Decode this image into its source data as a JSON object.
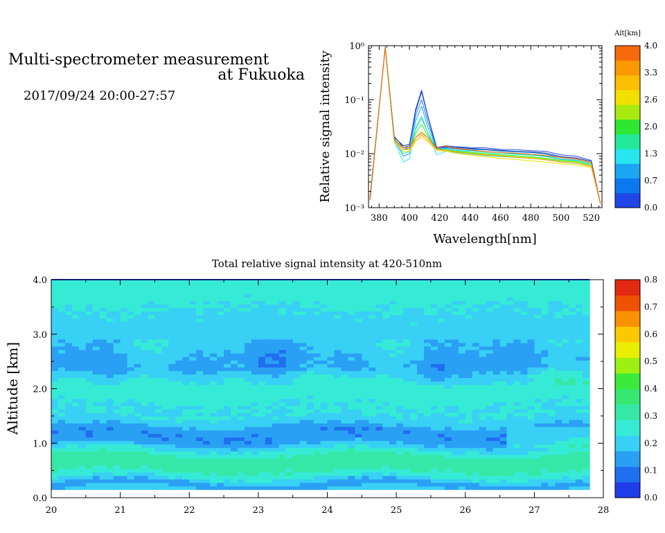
{
  "header": {
    "title_line1": "Multi-spectrometer measurement",
    "title_line2": "at Fukuoka",
    "date_range": "2017/09/24 20:00-27:57"
  },
  "colors": {
    "spectrum_scale": [
      "#1f46e6",
      "#0a78ee",
      "#1aa6f2",
      "#27e6f0",
      "#22e89a",
      "#2ee830",
      "#a8ea10",
      "#f2e000",
      "#fabf00",
      "#fb9a00",
      "#f56a0a"
    ],
    "heatmap_scale": [
      "#1f3de8",
      "#1f6fee",
      "#2aa0f4",
      "#38d0f4",
      "#36ebd6",
      "#36e8a8",
      "#36e872",
      "#3cea3c",
      "#9ef012",
      "#eaee00",
      "#fcc800",
      "#f89200",
      "#ee5200",
      "#e22a10"
    ]
  },
  "chart_data": [
    {
      "type": "line",
      "title": "",
      "xlabel": "Wavelength[nm]",
      "ylabel": "Relative signal intensity",
      "xlim": [
        373,
        527
      ],
      "ylim": [
        0.001,
        1
      ],
      "y_scale": "log",
      "x_ticks": [
        380,
        400,
        420,
        440,
        460,
        480,
        500,
        520
      ],
      "y_ticks": [
        {
          "value": 0.001,
          "label": "10⁻³"
        },
        {
          "value": 0.01,
          "label": "10⁻²"
        },
        {
          "value": 0.1,
          "label": "10⁻¹"
        },
        {
          "value": 1,
          "label": "10⁰"
        }
      ],
      "colorbar": {
        "title": "Alt[km]",
        "labels": [
          "4.0",
          "3.3",
          "2.6",
          "2.0",
          "1.3",
          "0.7",
          "0.0"
        ],
        "range": [
          0.0,
          4.0
        ]
      },
      "x": [
        374,
        384,
        390,
        396,
        400,
        404,
        408,
        412,
        418,
        424,
        430,
        440,
        450,
        460,
        470,
        480,
        490,
        500,
        510,
        520,
        526
      ],
      "series": [
        {
          "color": "#0a2a80",
          "values": [
            0.0016,
            0.95,
            0.02,
            0.014,
            0.015,
            0.06,
            0.14,
            0.05,
            0.0125,
            0.0135,
            0.013,
            0.0125,
            0.012,
            0.0115,
            0.011,
            0.0108,
            0.0102,
            0.0088,
            0.0083,
            0.0072,
            0.0012
          ]
        },
        {
          "color": "#1f46e6",
          "values": [
            0.0015,
            0.95,
            0.021,
            0.013,
            0.014,
            0.065,
            0.15,
            0.052,
            0.013,
            0.014,
            0.0135,
            0.013,
            0.0128,
            0.012,
            0.0118,
            0.0114,
            0.011,
            0.0095,
            0.009,
            0.0075,
            0.0012
          ]
        },
        {
          "color": "#0a78ee",
          "values": [
            0.0015,
            0.94,
            0.019,
            0.012,
            0.013,
            0.05,
            0.1,
            0.04,
            0.0125,
            0.013,
            0.0125,
            0.012,
            0.0118,
            0.0112,
            0.0108,
            0.0105,
            0.0098,
            0.0085,
            0.008,
            0.0068,
            0.0012
          ]
        },
        {
          "color": "#1aa6f2",
          "values": [
            0.0014,
            0.93,
            0.018,
            0.009,
            0.01,
            0.04,
            0.075,
            0.032,
            0.012,
            0.0125,
            0.012,
            0.0115,
            0.011,
            0.0105,
            0.01,
            0.0097,
            0.009,
            0.008,
            0.0076,
            0.0065,
            0.0012
          ]
        },
        {
          "color": "#27e6f0",
          "values": [
            0.0014,
            0.92,
            0.017,
            0.007,
            0.008,
            0.03,
            0.05,
            0.025,
            0.0095,
            0.011,
            0.0105,
            0.0098,
            0.0092,
            0.0088,
            0.0085,
            0.0082,
            0.0078,
            0.007,
            0.0066,
            0.006,
            0.0012
          ]
        },
        {
          "color": "#22e89a",
          "values": [
            0.0014,
            0.92,
            0.019,
            0.01,
            0.011,
            0.028,
            0.045,
            0.025,
            0.012,
            0.012,
            0.0115,
            0.011,
            0.0105,
            0.01,
            0.0098,
            0.0094,
            0.0088,
            0.0078,
            0.0075,
            0.0065,
            0.0012
          ]
        },
        {
          "color": "#2ee830",
          "values": [
            0.0014,
            0.92,
            0.019,
            0.012,
            0.012,
            0.024,
            0.035,
            0.022,
            0.012,
            0.012,
            0.0112,
            0.0105,
            0.01,
            0.0095,
            0.0092,
            0.0088,
            0.0082,
            0.0075,
            0.0072,
            0.0062,
            0.0012
          ]
        },
        {
          "color": "#a8ea10",
          "values": [
            0.0014,
            0.91,
            0.018,
            0.012,
            0.012,
            0.02,
            0.026,
            0.02,
            0.012,
            0.0115,
            0.011,
            0.0102,
            0.0097,
            0.0092,
            0.0088,
            0.0085,
            0.008,
            0.0073,
            0.007,
            0.006,
            0.0012
          ]
        },
        {
          "color": "#f2e000",
          "values": [
            0.0014,
            0.91,
            0.017,
            0.011,
            0.011,
            0.017,
            0.02,
            0.017,
            0.0115,
            0.011,
            0.0102,
            0.0094,
            0.0088,
            0.0082,
            0.0078,
            0.0074,
            0.007,
            0.0065,
            0.0062,
            0.0055,
            0.0012
          ]
        },
        {
          "color": "#fb9a00",
          "values": [
            0.0014,
            0.91,
            0.018,
            0.012,
            0.012,
            0.018,
            0.022,
            0.018,
            0.012,
            0.0115,
            0.0108,
            0.01,
            0.0094,
            0.009,
            0.0086,
            0.0082,
            0.0077,
            0.007,
            0.0067,
            0.0058,
            0.0012
          ]
        },
        {
          "color": "#f56a0a",
          "values": [
            0.0014,
            0.9,
            0.018,
            0.013,
            0.013,
            0.02,
            0.024,
            0.02,
            0.0125,
            0.014,
            0.0125,
            0.0118,
            0.011,
            0.0105,
            0.0102,
            0.0098,
            0.0092,
            0.0085,
            0.008,
            0.0068,
            0.0012
          ]
        }
      ]
    },
    {
      "type": "heatmap",
      "title": "Total relative signal intensity at 420-510nm",
      "xlabel": "",
      "ylabel": "Altitude [km]",
      "xlim": [
        20,
        28
      ],
      "ylim": [
        0.0,
        4.0
      ],
      "x_ticks": [
        "20",
        "21",
        "22",
        "23",
        "24",
        "25",
        "26",
        "27",
        "28"
      ],
      "y_ticks": [
        "0.0",
        "1.0",
        "2.0",
        "3.0",
        "4.0"
      ],
      "data_extent": {
        "x": [
          20.0,
          27.8
        ],
        "y": [
          0.15,
          4.0
        ]
      },
      "colorbar": {
        "range": [
          0.0,
          0.8
        ],
        "labels": [
          "0.8",
          "0.7",
          "0.6",
          "0.5",
          "0.4",
          "0.3",
          "0.2",
          "0.1",
          "0.0"
        ]
      },
      "profile_altitude_km": [
        0.15,
        0.25,
        0.35,
        0.45,
        0.6,
        0.75,
        0.9,
        1.05,
        1.2,
        1.35,
        1.5,
        1.7,
        1.9,
        2.05,
        2.2,
        2.35,
        2.5,
        2.65,
        2.8,
        3.0,
        3.2,
        3.4,
        3.6,
        3.8,
        4.0
      ],
      "profile_intensity": [
        0.2,
        0.13,
        0.22,
        0.27,
        0.32,
        0.31,
        0.22,
        0.13,
        0.12,
        0.18,
        0.23,
        0.23,
        0.26,
        0.26,
        0.22,
        0.16,
        0.15,
        0.17,
        0.19,
        0.2,
        0.21,
        0.22,
        0.24,
        0.26,
        0.25
      ]
    }
  ]
}
